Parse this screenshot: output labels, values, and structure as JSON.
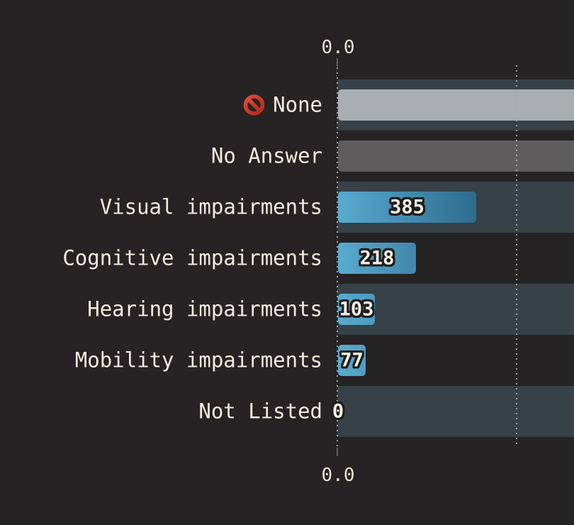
{
  "page": {
    "background_color": "#262324",
    "band_color": "#364148",
    "label_color": "#f2ecdf",
    "value_text_color": "#f7f2e7",
    "value_outline_color": "#1f1d1d",
    "gridline_dot_color": "#a2aaa7",
    "bar_gradient_start": "#58abd0",
    "bar_gradient_end": "#1d4f71",
    "none_bar_color": "#a9aeb2",
    "no_answer_bar_color": "#5f5c5e",
    "no_entry_icon_color": "#d93a2b"
  },
  "chart_data": {
    "type": "bar",
    "orientation": "horizontal",
    "categories": [
      "None",
      "No Answer",
      "Visual impairments",
      "Cognitive impairments",
      "Hearing impairments",
      "Mobility impairments",
      "Not Listed"
    ],
    "values": [
      null,
      null,
      385,
      218,
      103,
      77,
      0
    ],
    "value_labels_shown": [
      "",
      "",
      "385",
      "218",
      "103",
      "77",
      "0"
    ],
    "title": "",
    "xlabel": "",
    "ylabel": "",
    "x_axis": {
      "top_label": "0.0",
      "bottom_label": "0.0",
      "gridline_count": 2
    },
    "legend": "none",
    "notes": "Bars for None and No Answer extend past the right edge of the image; their numeric values are not visible. Rows alternate with dark-teal background bands starting at the zero axis."
  },
  "rows": [
    {
      "label": "None",
      "icon": "no-entry-icon",
      "value": null,
      "display": "",
      "bar_style": "solid-lightgray",
      "band": "teal",
      "full_width": true
    },
    {
      "label": "No Answer",
      "value": null,
      "display": "",
      "bar_style": "solid-gray",
      "band": "none",
      "full_width": true
    },
    {
      "label": "Visual impairments",
      "value": 385,
      "display": "385",
      "bar_style": "blue-gradient",
      "band": "teal",
      "full_width": false
    },
    {
      "label": "Cognitive impairments",
      "value": 218,
      "display": "218",
      "bar_style": "blue-gradient",
      "band": "none",
      "full_width": false
    },
    {
      "label": "Hearing impairments",
      "value": 103,
      "display": "103",
      "bar_style": "blue-gradient",
      "band": "teal",
      "full_width": false
    },
    {
      "label": "Mobility impairments",
      "value": 77,
      "display": "77",
      "bar_style": "blue-gradient",
      "band": "none",
      "full_width": false
    },
    {
      "label": "Not Listed",
      "value": 0,
      "display": "0",
      "bar_style": "none",
      "band": "teal",
      "full_width": false
    }
  ]
}
